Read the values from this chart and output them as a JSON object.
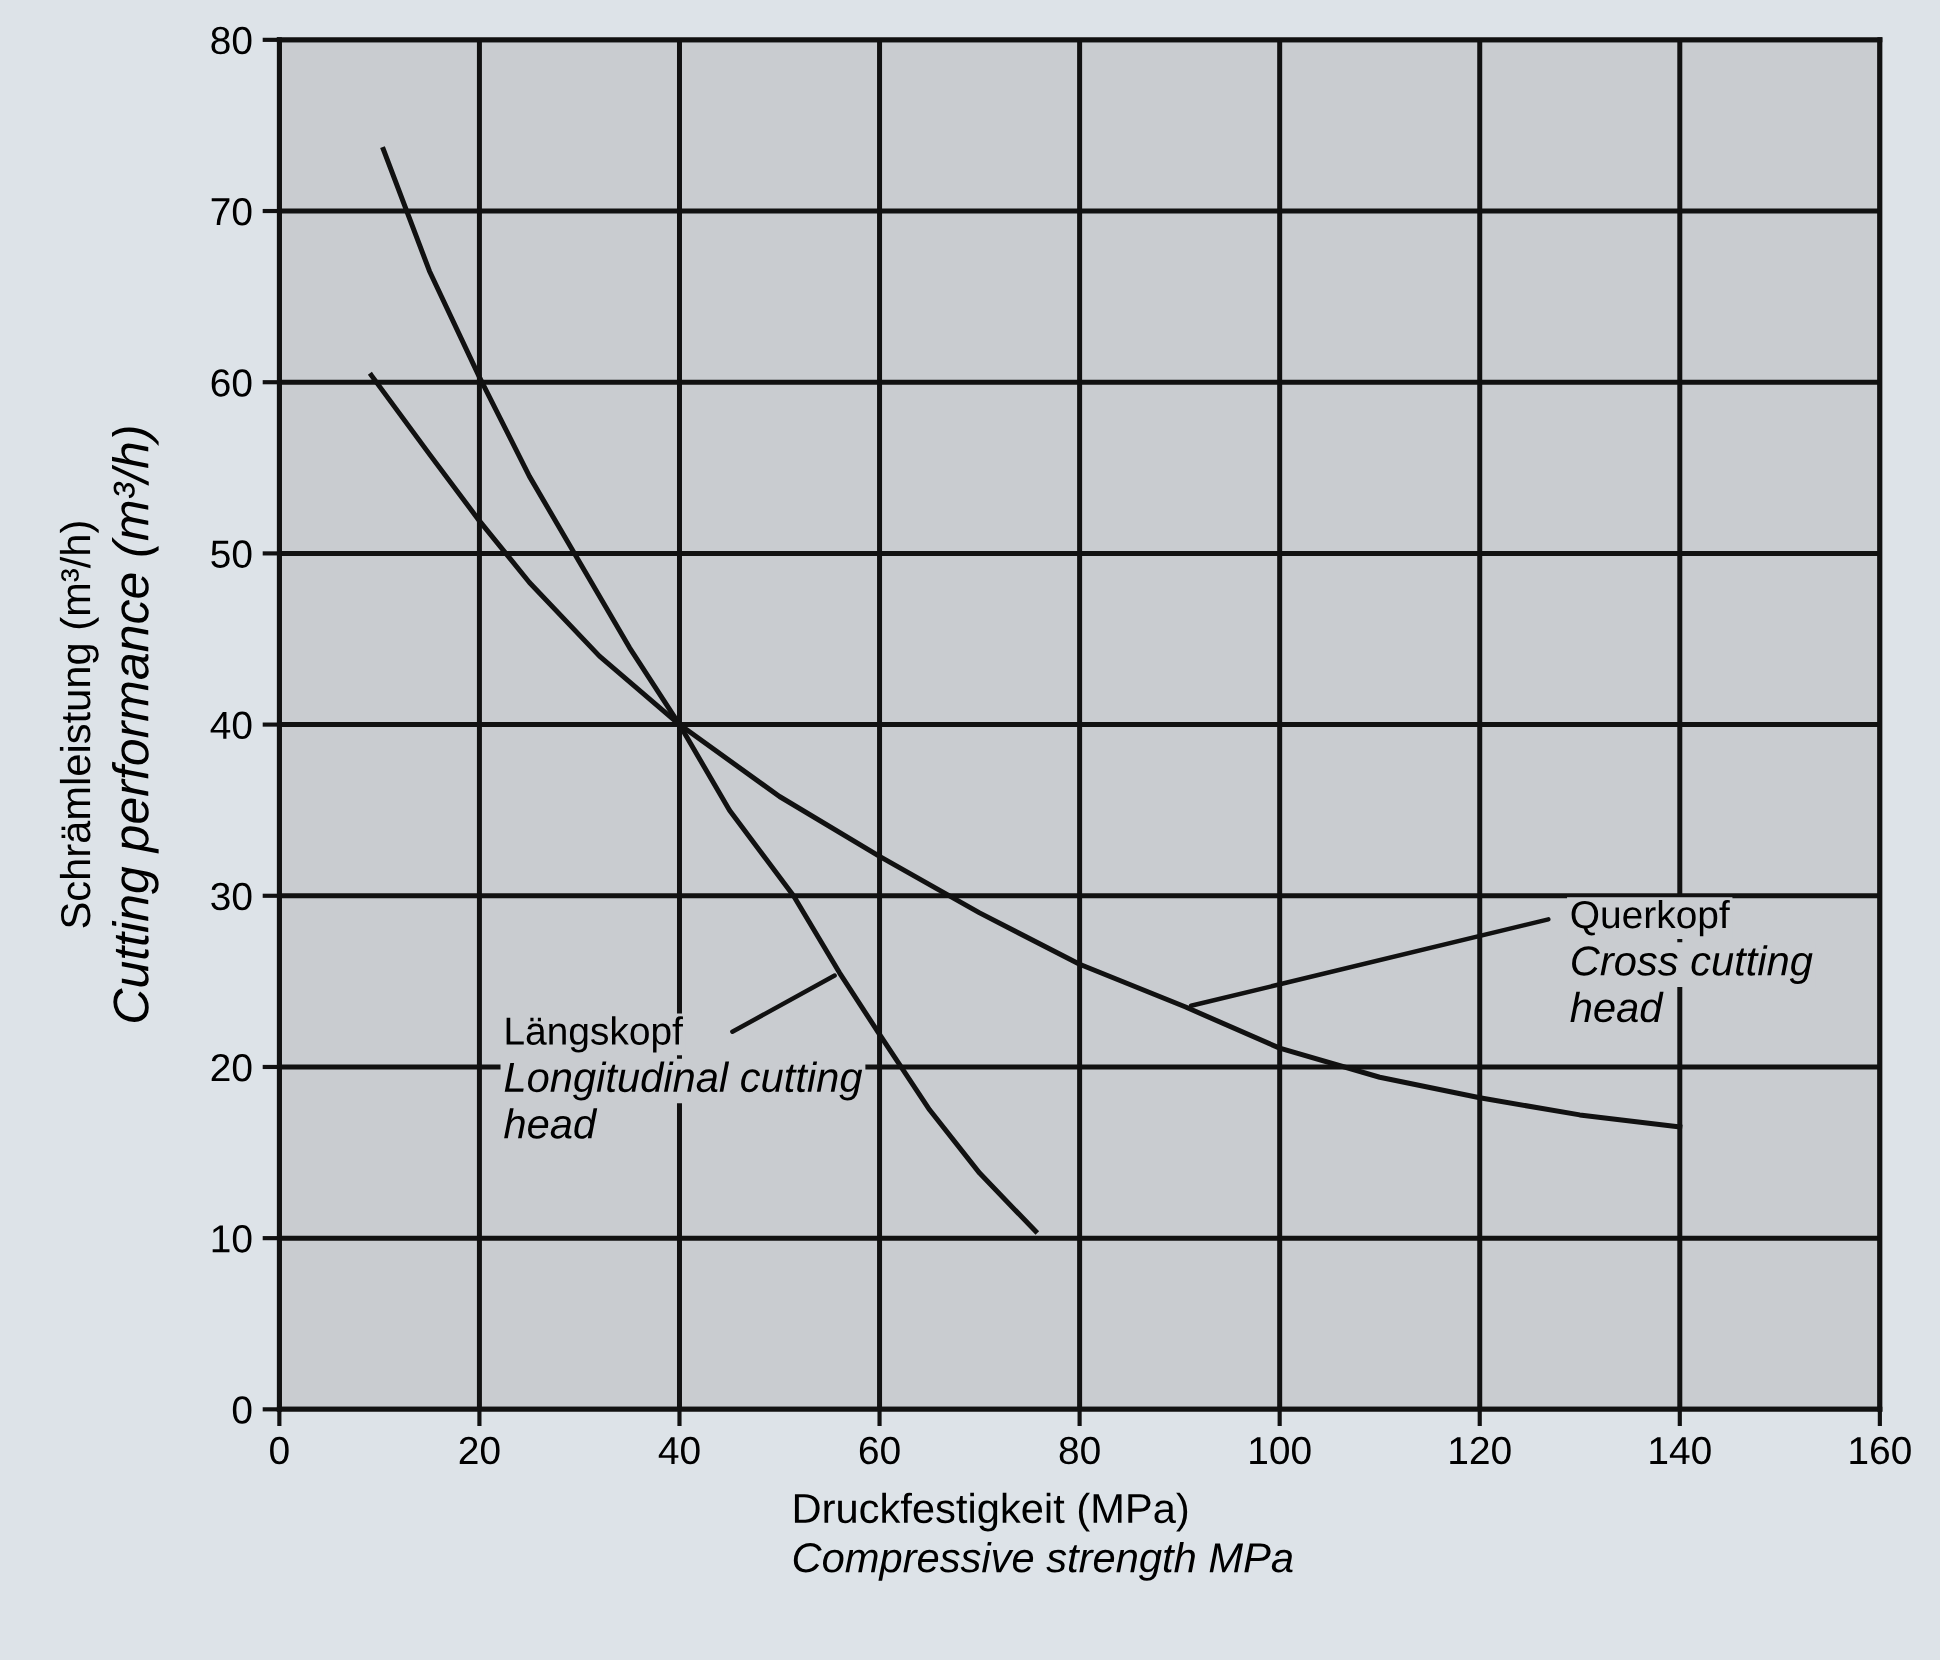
{
  "chart_data": {
    "type": "line",
    "xlabel": "Druckfestigkeit (MPa)\nCompressive strength MPa",
    "ylabel": "Schrämleistung (m³/h)\nCutting performance (m³/h)",
    "series": [
      {
        "color": "#111111",
        "x": [
          10.4,
          15,
          20,
          25,
          30,
          35,
          40,
          45,
          51.4,
          56,
          60,
          65,
          70,
          75.6
        ],
        "values": [
          73.6,
          66.5,
          60.3,
          54.5,
          49.5,
          44.5,
          40,
          35,
          30,
          25.5,
          21.9,
          17.5,
          13.8,
          10.4
        ]
      },
      {
        "color": "#111111",
        "x": [
          9.2,
          15,
          20,
          25,
          32,
          40,
          50,
          60,
          70,
          80,
          90.6,
          100,
          110,
          120,
          130,
          140
        ],
        "values": [
          60.4,
          55.8,
          51.9,
          48.3,
          44,
          40,
          35.8,
          32.3,
          29,
          26,
          23.5,
          21.1,
          19.4,
          18.2,
          17.2,
          16.5
        ]
      }
    ],
    "annotations": [
      {
        "text": "Längskopf\nLongitudinal cutting\nhead",
        "x": 56,
        "y": 25.5
      },
      {
        "text": "Querkopf\nCross cutting\nhead",
        "x": 90.6,
        "y": 23.5
      }
    ],
    "xlim": [
      0,
      160
    ],
    "ylim": [
      0,
      80
    ],
    "xticks": [
      0,
      20,
      40,
      60,
      80,
      100,
      120,
      140,
      160
    ],
    "yticks": [
      0,
      10,
      20,
      30,
      40,
      50,
      60,
      70,
      80
    ],
    "grid": true,
    "marker": "none",
    "line_style": "solid",
    "legend": false
  }
}
